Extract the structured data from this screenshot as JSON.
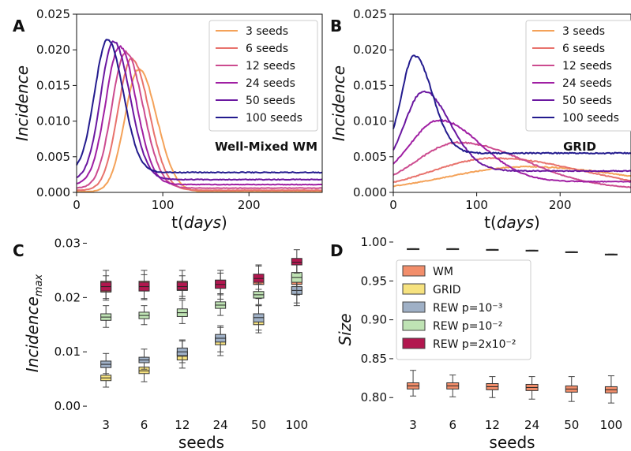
{
  "chart_data": [
    {
      "panel": "A",
      "type": "line",
      "ylabel": "Incidence",
      "xlabel_prefix": "t(",
      "xlabel_inner": "days",
      "xlabel_suffix": ")",
      "annotation": "Well-Mixed WM",
      "xlim": [
        0,
        285
      ],
      "ylim": [
        0,
        0.025
      ],
      "xticks": [
        "0",
        "100",
        "200"
      ],
      "yticks": [
        "0.000",
        "0.005",
        "0.010",
        "0.015",
        "0.020",
        "0.025"
      ],
      "legend_position": "top-right",
      "series": [
        {
          "name": "3 seeds",
          "color": "#f4a259",
          "peak_x": 72,
          "peak_y": 0.0173,
          "ws": 16,
          "we": 21,
          "y0": 0.0001
        },
        {
          "name": "6 seeds",
          "color": "#e8726c",
          "peak_x": 64,
          "peak_y": 0.0188,
          "ws": 16,
          "we": 20,
          "y0": 0.0003
        },
        {
          "name": "12 seeds",
          "color": "#cc4b8f",
          "peak_x": 57,
          "peak_y": 0.0197,
          "ws": 16,
          "we": 20,
          "y0": 0.0006
        },
        {
          "name": "24 seeds",
          "color": "#a01fa3",
          "peak_x": 50,
          "peak_y": 0.0205,
          "ws": 16,
          "we": 19,
          "y0": 0.0011
        },
        {
          "name": "50 seeds",
          "color": "#6a17a0",
          "peak_x": 43,
          "peak_y": 0.0212,
          "ws": 15,
          "we": 19,
          "y0": 0.0018
        },
        {
          "name": "100 seeds",
          "color": "#231b8e",
          "peak_x": 36,
          "peak_y": 0.0215,
          "ws": 15,
          "we": 18,
          "y0": 0.0028
        }
      ]
    },
    {
      "panel": "B",
      "type": "line",
      "ylabel": "Incidence",
      "xlabel_prefix": "t(",
      "xlabel_inner": "days",
      "xlabel_suffix": ")",
      "annotation": "GRID",
      "xlim": [
        0,
        285
      ],
      "ylim": [
        0,
        0.025
      ],
      "xticks": [
        "0",
        "100",
        "200"
      ],
      "yticks": [
        "0.000",
        "0.005",
        "0.010",
        "0.015",
        "0.020",
        "0.025"
      ],
      "legend_position": "top-right",
      "series": [
        {
          "name": "3 seeds",
          "color": "#f4a259",
          "peak_x": 160,
          "peak_y": 0.0036,
          "ws": 95,
          "we": 130,
          "y0": 0.0
        },
        {
          "name": "6 seeds",
          "color": "#e8726c",
          "peak_x": 120,
          "peak_y": 0.0048,
          "ws": 75,
          "we": 110,
          "y0": 0.0001
        },
        {
          "name": "12 seeds",
          "color": "#cc4b8f",
          "peak_x": 78,
          "peak_y": 0.007,
          "ws": 50,
          "we": 80,
          "y0": 0.0005
        },
        {
          "name": "24 seeds",
          "color": "#a01fa3",
          "peak_x": 55,
          "peak_y": 0.0101,
          "ws": 35,
          "we": 50,
          "y0": 0.0015
        },
        {
          "name": "50 seeds",
          "color": "#6a17a0",
          "peak_x": 36,
          "peak_y": 0.0142,
          "ws": 22,
          "we": 32,
          "y0": 0.003
        },
        {
          "name": "100 seeds",
          "color": "#231b8e",
          "peak_x": 25,
          "peak_y": 0.0192,
          "ws": 15,
          "we": 22,
          "y0": 0.0055
        }
      ]
    },
    {
      "panel": "C",
      "type": "box",
      "ylabel_main": "Incidence",
      "ylabel_sub": "max",
      "xlabel": "seeds",
      "categories": [
        "3",
        "6",
        "12",
        "24",
        "50",
        "100"
      ],
      "ylim": [
        -0.001,
        0.0305
      ],
      "yticks": [
        0.0,
        0.01,
        0.02,
        0.03
      ],
      "yticklabels": [
        "0.00",
        "0.01",
        "0.02",
        "0.03"
      ],
      "series": [
        {
          "name": "WM",
          "color": "#f28e6b",
          "med": [
            0.022,
            0.022,
            0.022,
            0.0225,
            0.0233,
            0.0233
          ],
          "q1": [
            0.021,
            0.0212,
            0.0213,
            0.0217,
            0.0224,
            0.0224
          ],
          "q3": [
            0.023,
            0.023,
            0.023,
            0.0232,
            0.024,
            0.0242
          ],
          "wlo": [
            0.0195,
            0.0196,
            0.0198,
            0.0197,
            0.0198,
            0.0205
          ],
          "whi": [
            0.025,
            0.025,
            0.025,
            0.025,
            0.026,
            0.0265
          ]
        },
        {
          "name": "GRID",
          "color": "#f6e27f",
          "med": [
            0.0052,
            0.0065,
            0.0092,
            0.012,
            0.0158,
            0.0212
          ],
          "q1": [
            0.0047,
            0.006,
            0.0085,
            0.0113,
            0.015,
            0.0206
          ],
          "q3": [
            0.0057,
            0.0072,
            0.01,
            0.0127,
            0.0165,
            0.022
          ],
          "wlo": [
            0.0035,
            0.0045,
            0.007,
            0.0093,
            0.0135,
            0.0185
          ],
          "whi": [
            0.0075,
            0.009,
            0.012,
            0.0145,
            0.0185,
            0.0235
          ]
        },
        {
          "name": "REW p=10⁻³",
          "color": "#9fb0c6",
          "med": [
            0.0077,
            0.0085,
            0.01,
            0.0125,
            0.0163,
            0.0213
          ],
          "q1": [
            0.0071,
            0.008,
            0.0093,
            0.0118,
            0.0155,
            0.0206
          ],
          "q3": [
            0.0083,
            0.009,
            0.0107,
            0.0132,
            0.017,
            0.022
          ],
          "wlo": [
            0.006,
            0.0068,
            0.008,
            0.01,
            0.014,
            0.019
          ],
          "whi": [
            0.0097,
            0.0105,
            0.0122,
            0.0148,
            0.0185,
            0.0237
          ]
        },
        {
          "name": "REW p=10⁻²",
          "color": "#bfe3b4",
          "med": [
            0.0164,
            0.0167,
            0.0172,
            0.0186,
            0.0205,
            0.0237
          ],
          "q1": [
            0.0158,
            0.0161,
            0.0165,
            0.018,
            0.0199,
            0.0228
          ],
          "q3": [
            0.017,
            0.0173,
            0.0179,
            0.0192,
            0.0211,
            0.0246
          ],
          "wlo": [
            0.0145,
            0.015,
            0.0152,
            0.0167,
            0.0187,
            0.0205
          ],
          "whi": [
            0.0185,
            0.0185,
            0.0195,
            0.0207,
            0.0225,
            0.0265
          ]
        },
        {
          "name": "REW p=2x10⁻²",
          "color": "#b2174f",
          "med": [
            0.022,
            0.022,
            0.022,
            0.0224,
            0.0235,
            0.0265
          ],
          "q1": [
            0.0212,
            0.0212,
            0.0214,
            0.0217,
            0.0228,
            0.026
          ],
          "q3": [
            0.0228,
            0.0228,
            0.0228,
            0.0232,
            0.0243,
            0.0272
          ],
          "wlo": [
            0.0198,
            0.0198,
            0.0202,
            0.0205,
            0.0215,
            0.0245
          ],
          "whi": [
            0.024,
            0.0242,
            0.024,
            0.0245,
            0.0258,
            0.0288
          ]
        }
      ]
    },
    {
      "panel": "D",
      "type": "box",
      "ylabel": "Size",
      "xlabel": "seeds",
      "categories": [
        "3",
        "6",
        "12",
        "24",
        "50",
        "100"
      ],
      "ylim": [
        0.782,
        1.002
      ],
      "yticks": [
        0.8,
        0.85,
        0.9,
        0.95,
        1.0
      ],
      "yticklabels": [
        "0.80",
        "0.85",
        "0.90",
        "0.95",
        "1.00"
      ],
      "legend_position": "left",
      "legend": [
        {
          "name": "WM",
          "color": "#f28e6b"
        },
        {
          "name": "GRID",
          "color": "#f6e27f"
        },
        {
          "name": "REW p=10⁻³",
          "color": "#9fb0c6"
        },
        {
          "name": "REW p=10⁻²",
          "color": "#bfe3b4"
        },
        {
          "name": "REW p=2x10⁻²",
          "color": "#b2174f"
        }
      ],
      "series": [
        {
          "name": "WM",
          "color": "#f28e6b",
          "med": [
            0.815,
            0.815,
            0.814,
            0.813,
            0.811,
            0.81
          ],
          "q1": [
            0.811,
            0.811,
            0.81,
            0.809,
            0.807,
            0.806
          ],
          "q3": [
            0.819,
            0.819,
            0.818,
            0.817,
            0.815,
            0.814
          ],
          "wlo": [
            0.802,
            0.801,
            0.8,
            0.798,
            0.795,
            0.793
          ],
          "whi": [
            0.835,
            0.829,
            0.827,
            0.827,
            0.827,
            0.828
          ]
        },
        {
          "name": "GRID",
          "color": "#f6e27f",
          "med": [
            0.991,
            0.991,
            0.99,
            0.989,
            0.987,
            0.984
          ],
          "q1": [
            0.9905,
            0.9905,
            0.9895,
            0.9885,
            0.9865,
            0.9835
          ],
          "q3": [
            0.9915,
            0.9915,
            0.9905,
            0.9895,
            0.9875,
            0.9845
          ],
          "wlo": [
            0.9905,
            0.9905,
            0.9895,
            0.9885,
            0.9865,
            0.9835
          ],
          "whi": [
            0.9915,
            0.9915,
            0.9905,
            0.9895,
            0.9875,
            0.9845
          ]
        }
      ]
    }
  ]
}
